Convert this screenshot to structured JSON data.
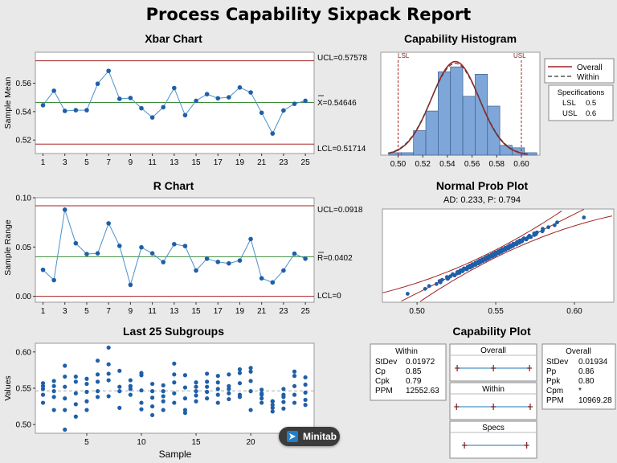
{
  "title": "Process Capability Sixpack Report",
  "badge": "Minitab",
  "xbar": {
    "title": "Xbar Chart",
    "ylabel": "Sample Mean",
    "ucl_label": "UCL=0.57578",
    "cl_label": "X=0.54646",
    "lcl_label": "LCL=0.51714",
    "xticks": [
      "1",
      "3",
      "5",
      "7",
      "9",
      "11",
      "13",
      "15",
      "17",
      "19",
      "21",
      "23",
      "25"
    ],
    "yticks": [
      "0.52",
      "0.54",
      "0.56"
    ]
  },
  "rchart": {
    "title": "R Chart",
    "ylabel": "Sample Range",
    "ucl_label": "UCL=0.0918",
    "cl_label": "R=0.0402",
    "lcl_label": "LCL=0",
    "xticks": [
      "1",
      "3",
      "5",
      "7",
      "9",
      "11",
      "13",
      "15",
      "17",
      "19",
      "21",
      "23",
      "25"
    ],
    "yticks": [
      "0.00",
      "0.05",
      "0.10"
    ]
  },
  "last25": {
    "title": "Last 25 Subgroups",
    "ylabel": "Values",
    "xlabel": "Sample",
    "xticks": [
      "5",
      "10",
      "15",
      "20",
      "25"
    ],
    "yticks": [
      "0.50",
      "0.55",
      "0.60"
    ]
  },
  "histogram": {
    "title": "Capability Histogram",
    "lsl_tag": "LSL",
    "usl_tag": "USL",
    "xticks": [
      "0.50",
      "0.52",
      "0.54",
      "0.56",
      "0.58",
      "0.60"
    ],
    "legend": {
      "overall": "Overall",
      "within": "Within",
      "spec_title": "Specifications",
      "lsl_label": "LSL",
      "lsl_value": "0.5",
      "usl_label": "USL",
      "usl_value": "0.6"
    }
  },
  "normplot": {
    "title": "Normal Prob Plot",
    "subtitle": "AD: 0.233, P: 0.794",
    "xticks": [
      "0.50",
      "0.55",
      "0.60"
    ]
  },
  "capplot": {
    "title": "Capability Plot",
    "within": {
      "title": "Within",
      "rows": [
        {
          "k": "StDev",
          "v": "0.01972"
        },
        {
          "k": "Cp",
          "v": "0.85"
        },
        {
          "k": "Cpk",
          "v": "0.79"
        },
        {
          "k": "PPM",
          "v": "12552.63"
        }
      ]
    },
    "overall": {
      "title": "Overall",
      "rows": [
        {
          "k": "StDev",
          "v": "0.01934"
        },
        {
          "k": "Pp",
          "v": "0.86"
        },
        {
          "k": "Ppk",
          "v": "0.80"
        },
        {
          "k": "Cpm",
          "v": "*"
        },
        {
          "k": "PPM",
          "v": "10969.28"
        }
      ]
    },
    "boxes": [
      "Overall",
      "Within",
      "Specs"
    ]
  },
  "chart_data": [
    {
      "type": "line",
      "title": "Xbar Chart",
      "ylabel": "Sample Mean",
      "x": [
        1,
        2,
        3,
        4,
        5,
        6,
        7,
        8,
        9,
        10,
        11,
        12,
        13,
        14,
        15,
        16,
        17,
        18,
        19,
        20,
        21,
        22,
        23,
        24,
        25
      ],
      "values": [
        0.5445,
        0.5547,
        0.5405,
        0.541,
        0.541,
        0.5596,
        0.5687,
        0.549,
        0.5496,
        0.5424,
        0.5359,
        0.5431,
        0.5566,
        0.5375,
        0.5476,
        0.5523,
        0.5494,
        0.5501,
        0.557,
        0.5535,
        0.5392,
        0.5246,
        0.5408,
        0.5455,
        0.5476
      ],
      "ucl": 0.57578,
      "cl": 0.54646,
      "lcl": 0.51714,
      "ylim": [
        0.5105,
        0.5818
      ]
    },
    {
      "type": "line",
      "title": "R Chart",
      "ylabel": "Sample Range",
      "x": [
        1,
        2,
        3,
        4,
        5,
        6,
        7,
        8,
        9,
        10,
        11,
        12,
        13,
        14,
        15,
        16,
        17,
        18,
        19,
        20,
        21,
        22,
        23,
        24,
        25
      ],
      "values": [
        0.0269,
        0.0164,
        0.0879,
        0.0538,
        0.0429,
        0.0436,
        0.074,
        0.0512,
        0.0116,
        0.0497,
        0.0436,
        0.0347,
        0.0529,
        0.051,
        0.0262,
        0.0382,
        0.0349,
        0.0334,
        0.0363,
        0.0581,
        0.0183,
        0.0141,
        0.0262,
        0.0433,
        0.0382
      ],
      "ucl": 0.0918,
      "cl": 0.0402,
      "lcl": 0,
      "ylim": [
        -0.006,
        0.1
      ]
    },
    {
      "type": "scatter",
      "title": "Last 25 Subgroups",
      "ylabel": "Values",
      "xlabel": "Sample",
      "x": [
        1,
        2,
        3,
        4,
        5,
        6,
        7,
        8,
        9,
        10,
        11,
        12,
        13,
        14,
        15,
        16,
        17,
        18,
        19,
        20,
        21,
        22,
        23,
        24,
        25
      ],
      "subgroups": [
        [
          0.53,
          0.541,
          0.549,
          0.553,
          0.557
        ],
        [
          0.538,
          0.546,
          0.553,
          0.56,
          0.52
        ],
        [
          0.493,
          0.52,
          0.536,
          0.552,
          0.566,
          0.581
        ],
        [
          0.511,
          0.528,
          0.543,
          0.559,
          0.566
        ],
        [
          0.52,
          0.532,
          0.545,
          0.556,
          0.563
        ],
        [
          0.538,
          0.546,
          0.559,
          0.569,
          0.588
        ],
        [
          0.539,
          0.561,
          0.57,
          0.583,
          0.606
        ],
        [
          0.523,
          0.546,
          0.552,
          0.574
        ],
        [
          0.541,
          0.549,
          0.553,
          0.561,
          0.553
        ],
        [
          0.521,
          0.53,
          0.547,
          0.571,
          0.568
        ],
        [
          0.513,
          0.525,
          0.537,
          0.546,
          0.556
        ],
        [
          0.52,
          0.532,
          0.539,
          0.546,
          0.554
        ],
        [
          0.53,
          0.543,
          0.558,
          0.569,
          0.584
        ],
        [
          0.516,
          0.52,
          0.536,
          0.551,
          0.568
        ],
        [
          0.532,
          0.54,
          0.546,
          0.552,
          0.558
        ],
        [
          0.536,
          0.545,
          0.552,
          0.559,
          0.57
        ],
        [
          0.53,
          0.541,
          0.549,
          0.558,
          0.567
        ],
        [
          0.535,
          0.543,
          0.549,
          0.553,
          0.569
        ],
        [
          0.538,
          0.541,
          0.557,
          0.571,
          0.576
        ],
        [
          0.52,
          0.546,
          0.56,
          0.573,
          0.578
        ],
        [
          0.53,
          0.536,
          0.541,
          0.543,
          0.548
        ],
        [
          0.518,
          0.523,
          0.527,
          0.532,
          0.532
        ],
        [
          0.522,
          0.531,
          0.538,
          0.541,
          0.549
        ],
        [
          0.53,
          0.541,
          0.553,
          0.567,
          0.573
        ],
        [
          0.527,
          0.534,
          0.544,
          0.555,
          0.565
        ]
      ],
      "mean": 0.54646,
      "ylim": [
        0.488,
        0.612
      ]
    },
    {
      "type": "bar",
      "title": "Capability Histogram",
      "bin_edges": [
        0.4925,
        0.5025,
        0.5125,
        0.5225,
        0.5325,
        0.5425,
        0.5525,
        0.5625,
        0.5725,
        0.5825,
        0.5925,
        0.6025,
        0.6125
      ],
      "values": [
        1,
        1,
        10,
        18,
        34,
        36,
        24,
        33,
        20,
        4,
        3,
        1
      ],
      "lsl": 0.5,
      "usl": 0.6,
      "mean": 0.54646,
      "sd_overall": 0.01934,
      "sd_within": 0.01972,
      "xlim": [
        0.486,
        0.615
      ],
      "legend": "right"
    },
    {
      "type": "scatter",
      "title": "Normal Prob Plot",
      "subtitle": "AD: 0.233, P: 0.794",
      "x_range": [
        0.494,
        0.606
      ],
      "n": 125,
      "xlim": [
        0.478,
        0.625
      ]
    },
    {
      "type": "line",
      "title": "Capability Plot",
      "overall_marks": [
        0.4884,
        0.54646,
        0.6045
      ],
      "within_marks": [
        0.4873,
        0.54646,
        0.6056
      ],
      "spec_marks": [
        0.5,
        0.6
      ]
    }
  ]
}
